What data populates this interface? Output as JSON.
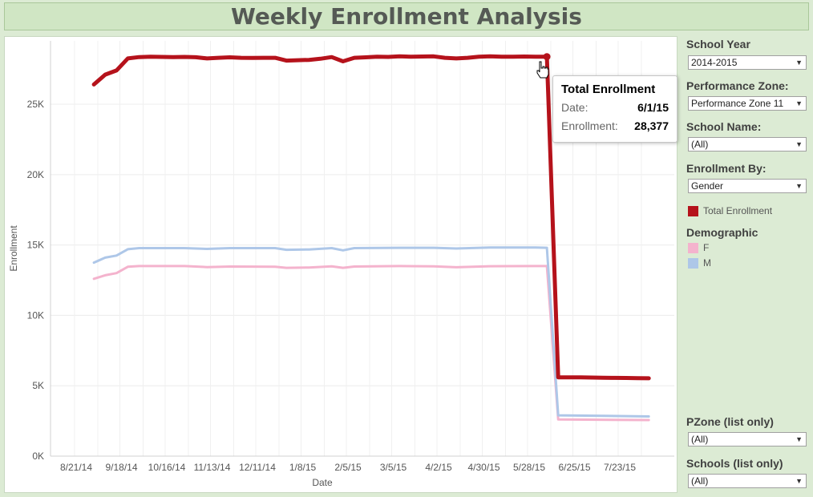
{
  "header": {
    "title": "Weekly Enrollment Analysis"
  },
  "filters": {
    "school_year": {
      "label": "School Year",
      "value": "2014-2015"
    },
    "performance_zone": {
      "label": "Performance Zone:",
      "value": "Performance Zone 11"
    },
    "school_name": {
      "label": "School Name:",
      "value": "(All)"
    },
    "enrollment_by": {
      "label": "Enrollment By:",
      "value": "Gender"
    },
    "pzone_list": {
      "label": "PZone (list only)",
      "value": "(All)"
    },
    "schools_list": {
      "label": "Schools (list only)",
      "value": "(All)"
    }
  },
  "legend": {
    "total_label": "Total Enrollment",
    "demographic_title": "Demographic",
    "items": [
      {
        "label": "F",
        "color": "#f4b3cd"
      },
      {
        "label": "M",
        "color": "#aec7e8"
      }
    ]
  },
  "tooltip": {
    "title": "Total Enrollment",
    "date_label": "Date:",
    "date_value": "6/1/15",
    "enroll_label": "Enrollment:",
    "enroll_value": "28,377"
  },
  "chart_data": {
    "type": "line",
    "xlabel": "Date",
    "ylabel": "Enrollment",
    "ylim": [
      0,
      29500
    ],
    "x_ticks": [
      "8/21/14",
      "9/18/14",
      "10/16/14",
      "11/13/14",
      "12/11/14",
      "1/8/15",
      "2/5/15",
      "3/5/15",
      "4/2/15",
      "4/30/15",
      "5/28/15",
      "6/25/15",
      "7/23/15"
    ],
    "y_ticks": [
      {
        "value": 0,
        "label": "0K"
      },
      {
        "value": 5000,
        "label": "5K"
      },
      {
        "value": 10000,
        "label": "10K"
      },
      {
        "value": 15000,
        "label": "15K"
      },
      {
        "value": 20000,
        "label": "20K"
      },
      {
        "value": 25000,
        "label": "25K"
      }
    ],
    "grid": true,
    "series": [
      {
        "name": "Total Enrollment",
        "color": "#b5121b",
        "points": [
          [
            "8/25/14",
            26400
          ],
          [
            "9/1/14",
            27100
          ],
          [
            "9/8/14",
            27400
          ],
          [
            "9/15/14",
            28250
          ],
          [
            "9/22/14",
            28350
          ],
          [
            "9/29/14",
            28370
          ],
          [
            "10/6/14",
            28360
          ],
          [
            "10/13/14",
            28350
          ],
          [
            "10/20/14",
            28360
          ],
          [
            "10/27/14",
            28340
          ],
          [
            "11/3/14",
            28250
          ],
          [
            "11/10/14",
            28300
          ],
          [
            "11/17/14",
            28330
          ],
          [
            "11/24/14",
            28300
          ],
          [
            "12/1/14",
            28290
          ],
          [
            "12/8/14",
            28300
          ],
          [
            "12/15/14",
            28300
          ],
          [
            "12/22/14",
            28100
          ],
          [
            "1/5/15",
            28150
          ],
          [
            "1/12/15",
            28230
          ],
          [
            "1/19/15",
            28350
          ],
          [
            "1/26/15",
            28050
          ],
          [
            "2/2/15",
            28300
          ],
          [
            "2/9/15",
            28330
          ],
          [
            "2/16/15",
            28370
          ],
          [
            "2/23/15",
            28360
          ],
          [
            "3/2/15",
            28400
          ],
          [
            "3/9/15",
            28380
          ],
          [
            "3/16/15",
            28390
          ],
          [
            "3/23/15",
            28400
          ],
          [
            "3/30/15",
            28300
          ],
          [
            "4/6/15",
            28250
          ],
          [
            "4/13/15",
            28300
          ],
          [
            "4/20/15",
            28370
          ],
          [
            "4/27/15",
            28400
          ],
          [
            "5/4/15",
            28380
          ],
          [
            "5/11/15",
            28380
          ],
          [
            "5/18/15",
            28390
          ],
          [
            "5/25/15",
            28380
          ],
          [
            "6/1/15",
            28377
          ],
          [
            "6/8/15",
            5600
          ],
          [
            "6/15/15",
            5600
          ],
          [
            "6/22/15",
            5590
          ],
          [
            "6/29/15",
            5580
          ],
          [
            "7/6/15",
            5570
          ],
          [
            "7/13/15",
            5560
          ],
          [
            "7/20/15",
            5550
          ],
          [
            "7/27/15",
            5540
          ],
          [
            "8/3/15",
            5530
          ]
        ]
      },
      {
        "name": "F",
        "color": "#f4b3cd",
        "points": [
          [
            "8/25/14",
            12600
          ],
          [
            "9/1/14",
            12850
          ],
          [
            "9/8/14",
            13000
          ],
          [
            "9/15/14",
            13450
          ],
          [
            "9/22/14",
            13500
          ],
          [
            "10/20/14",
            13500
          ],
          [
            "11/3/14",
            13430
          ],
          [
            "11/17/14",
            13470
          ],
          [
            "12/15/14",
            13460
          ],
          [
            "12/22/14",
            13380
          ],
          [
            "1/5/15",
            13400
          ],
          [
            "1/19/15",
            13480
          ],
          [
            "1/26/15",
            13380
          ],
          [
            "2/2/15",
            13470
          ],
          [
            "3/2/15",
            13500
          ],
          [
            "3/23/15",
            13480
          ],
          [
            "4/6/15",
            13420
          ],
          [
            "4/27/15",
            13490
          ],
          [
            "5/25/15",
            13500
          ],
          [
            "6/1/15",
            13500
          ],
          [
            "6/8/15",
            2600
          ],
          [
            "8/3/15",
            2560
          ]
        ]
      },
      {
        "name": "M",
        "color": "#aec7e8",
        "points": [
          [
            "8/25/14",
            13750
          ],
          [
            "9/1/14",
            14100
          ],
          [
            "9/8/14",
            14250
          ],
          [
            "9/15/14",
            14700
          ],
          [
            "9/22/14",
            14780
          ],
          [
            "10/20/14",
            14780
          ],
          [
            "11/3/14",
            14720
          ],
          [
            "11/17/14",
            14780
          ],
          [
            "12/15/14",
            14780
          ],
          [
            "12/22/14",
            14660
          ],
          [
            "1/5/15",
            14680
          ],
          [
            "1/19/15",
            14780
          ],
          [
            "1/26/15",
            14620
          ],
          [
            "2/2/15",
            14780
          ],
          [
            "3/2/15",
            14800
          ],
          [
            "3/23/15",
            14800
          ],
          [
            "4/6/15",
            14750
          ],
          [
            "4/27/15",
            14820
          ],
          [
            "5/25/15",
            14820
          ],
          [
            "6/1/15",
            14800
          ],
          [
            "6/8/15",
            2900
          ],
          [
            "8/3/15",
            2820
          ]
        ]
      }
    ],
    "highlight": {
      "series": "Total Enrollment",
      "date": "6/1/15",
      "value": 28377
    }
  }
}
